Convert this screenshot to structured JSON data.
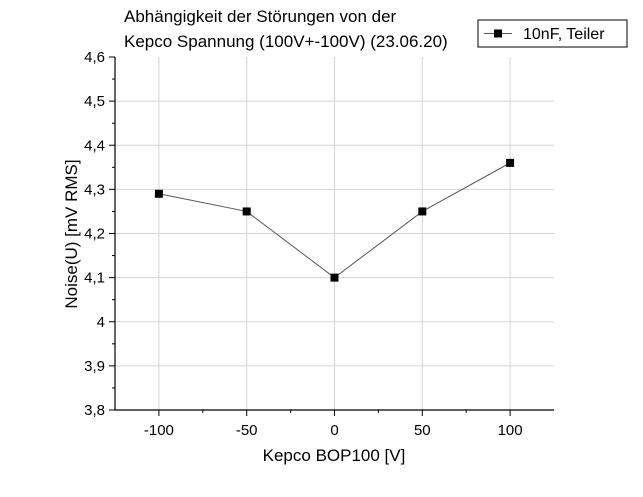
{
  "chart_data": {
    "type": "line",
    "title_lines": [
      "Abhängigkeit der Störungen von der",
      "Kepco Spannung (100V+-100V) (23.06.20)"
    ],
    "xlabel": "Kepco BOP100 [V]",
    "ylabel": "Noise(U) [mV RMS]",
    "xlim": [
      -125,
      125
    ],
    "ylim": [
      3.8,
      4.6
    ],
    "x_ticks": [
      -100,
      -50,
      0,
      50,
      100
    ],
    "x_tick_labels": [
      "-100",
      "-50",
      "0",
      "50",
      "100"
    ],
    "y_ticks": [
      3.8,
      3.9,
      4.0,
      4.1,
      4.2,
      4.3,
      4.4,
      4.5,
      4.6
    ],
    "y_tick_labels": [
      "3,8",
      "3,9",
      "4",
      "4,1",
      "4,2",
      "4,3",
      "4,4",
      "4,5",
      "4,6"
    ],
    "grid": true,
    "legend_position": "top-right",
    "series": [
      {
        "name": "10nF, Teiler",
        "x": [
          -100,
          -50,
          0,
          50,
          100
        ],
        "y": [
          4.29,
          4.25,
          4.1,
          4.25,
          4.36
        ],
        "marker": "square",
        "marker_color": "#000000",
        "line_color": "#555555"
      }
    ]
  }
}
